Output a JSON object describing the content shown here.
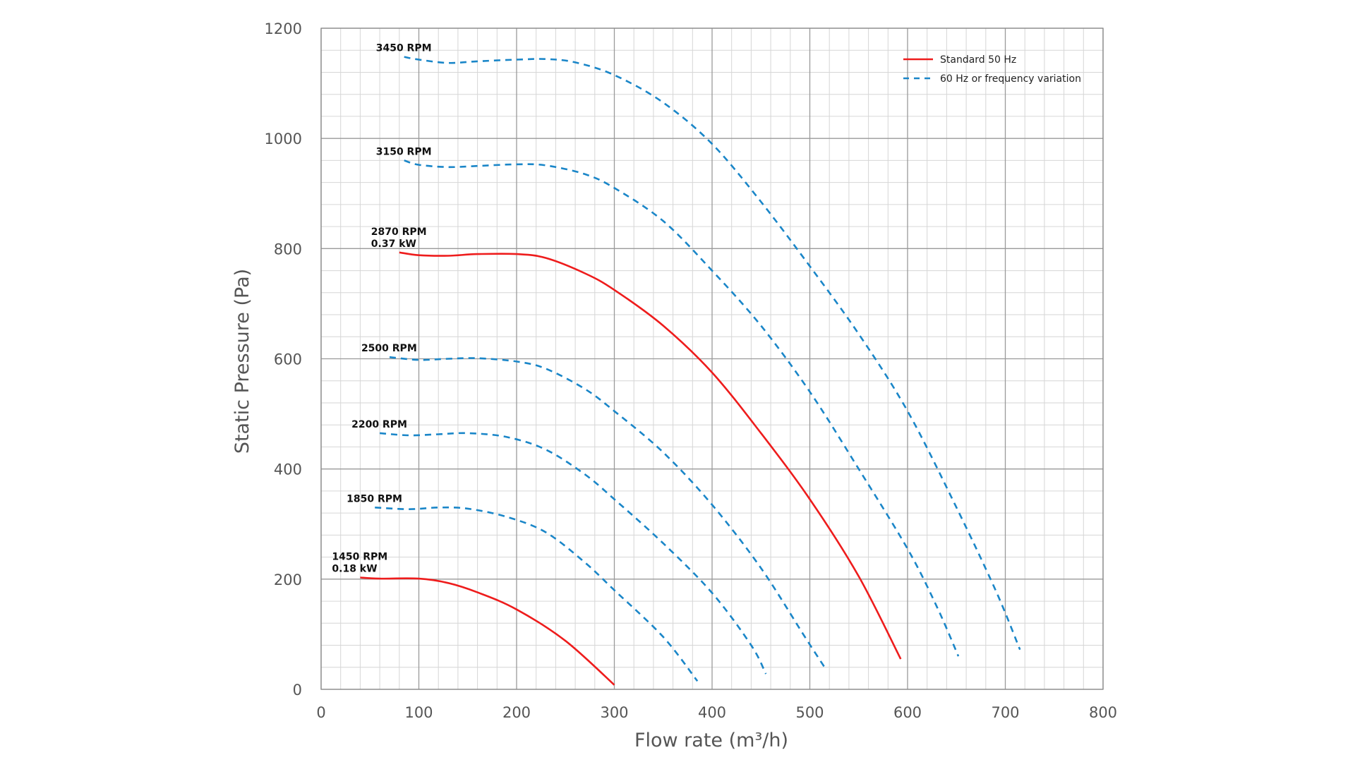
{
  "chart_data": {
    "type": "line",
    "title": "",
    "xlabel": "Flow rate (m³/h)",
    "ylabel": "Static Pressure (Pa)",
    "xlim": [
      0,
      800
    ],
    "ylim": [
      0,
      1200
    ],
    "x_ticks": [
      "0",
      "100",
      "200",
      "300",
      "400",
      "500",
      "600",
      "700",
      "800"
    ],
    "y_ticks": [
      "0",
      "200",
      "400",
      "600",
      "800",
      "1000",
      "1200"
    ],
    "grid": true,
    "legend_position": "top-right",
    "legend": [
      {
        "label": "Standard 50 Hz",
        "style": "solid",
        "color": "#ee1c1c"
      },
      {
        "label": "60 Hz or frequency variation",
        "style": "dashed",
        "color": "#1a86c8"
      }
    ],
    "series": [
      {
        "label_lines": [
          "3450 RPM"
        ],
        "style": "dashed",
        "color": "#1a86c8",
        "points": [
          [
            85,
            1148
          ],
          [
            100,
            1143
          ],
          [
            130,
            1137
          ],
          [
            160,
            1140
          ],
          [
            200,
            1143
          ],
          [
            230,
            1144
          ],
          [
            260,
            1138
          ],
          [
            300,
            1115
          ],
          [
            350,
            1065
          ],
          [
            400,
            990
          ],
          [
            450,
            885
          ],
          [
            500,
            768
          ],
          [
            550,
            645
          ],
          [
            600,
            505
          ],
          [
            650,
            330
          ],
          [
            690,
            180
          ],
          [
            715,
            72
          ]
        ]
      },
      {
        "label_lines": [
          "3150 RPM"
        ],
        "style": "dashed",
        "color": "#1a86c8",
        "points": [
          [
            85,
            960
          ],
          [
            100,
            952
          ],
          [
            130,
            948
          ],
          [
            160,
            950
          ],
          [
            200,
            953
          ],
          [
            230,
            951
          ],
          [
            270,
            935
          ],
          [
            300,
            910
          ],
          [
            350,
            850
          ],
          [
            400,
            760
          ],
          [
            450,
            660
          ],
          [
            500,
            540
          ],
          [
            550,
            400
          ],
          [
            600,
            255
          ],
          [
            630,
            150
          ],
          [
            652,
            60
          ]
        ]
      },
      {
        "label_lines": [
          "2870 RPM",
          "0.37 kW"
        ],
        "style": "solid",
        "color": "#ee1c1c",
        "points": [
          [
            80,
            793
          ],
          [
            100,
            788
          ],
          [
            130,
            787
          ],
          [
            160,
            790
          ],
          [
            200,
            790
          ],
          [
            230,
            783
          ],
          [
            270,
            755
          ],
          [
            300,
            725
          ],
          [
            350,
            660
          ],
          [
            400,
            575
          ],
          [
            450,
            465
          ],
          [
            500,
            345
          ],
          [
            550,
            205
          ],
          [
            593,
            55
          ]
        ]
      },
      {
        "label_lines": [
          "2500 RPM"
        ],
        "style": "dashed",
        "color": "#1a86c8",
        "points": [
          [
            70,
            603
          ],
          [
            100,
            598
          ],
          [
            130,
            600
          ],
          [
            160,
            601
          ],
          [
            200,
            595
          ],
          [
            230,
            582
          ],
          [
            270,
            545
          ],
          [
            300,
            505
          ],
          [
            350,
            430
          ],
          [
            400,
            335
          ],
          [
            450,
            220
          ],
          [
            495,
            95
          ],
          [
            517,
            35
          ]
        ]
      },
      {
        "label_lines": [
          "2200 RPM"
        ],
        "style": "dashed",
        "color": "#1a86c8",
        "points": [
          [
            60,
            465
          ],
          [
            90,
            461
          ],
          [
            120,
            463
          ],
          [
            150,
            465
          ],
          [
            190,
            458
          ],
          [
            230,
            435
          ],
          [
            270,
            390
          ],
          [
            300,
            345
          ],
          [
            350,
            265
          ],
          [
            400,
            175
          ],
          [
            440,
            80
          ],
          [
            455,
            28
          ]
        ]
      },
      {
        "label_lines": [
          "1850 RPM"
        ],
        "style": "dashed",
        "color": "#1a86c8",
        "points": [
          [
            55,
            330
          ],
          [
            90,
            327
          ],
          [
            120,
            330
          ],
          [
            150,
            328
          ],
          [
            190,
            313
          ],
          [
            230,
            285
          ],
          [
            270,
            230
          ],
          [
            300,
            180
          ],
          [
            350,
            95
          ],
          [
            385,
            15
          ]
        ]
      },
      {
        "label_lines": [
          "1450 RPM",
          "0.18 kW"
        ],
        "style": "solid",
        "color": "#ee1c1c",
        "points": [
          [
            40,
            203
          ],
          [
            60,
            201
          ],
          [
            100,
            201
          ],
          [
            130,
            193
          ],
          [
            160,
            176
          ],
          [
            200,
            145
          ],
          [
            250,
            88
          ],
          [
            300,
            8
          ]
        ]
      }
    ]
  }
}
